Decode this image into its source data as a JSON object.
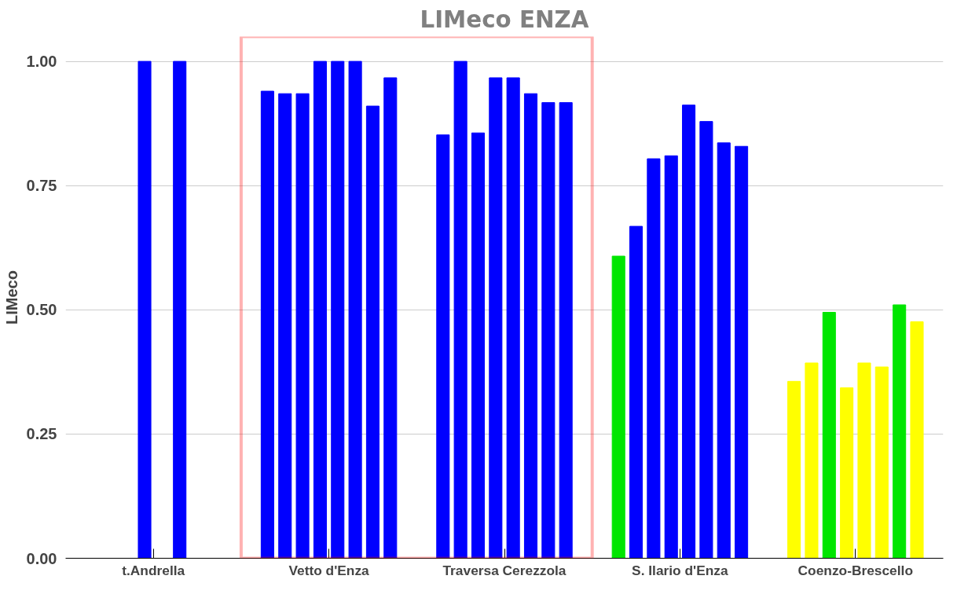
{
  "chart_data": {
    "type": "bar",
    "title": "LIMeco ENZA",
    "ylabel": "LIMeco",
    "categories": [
      "t.Andrella",
      "Vetto d'Enza",
      "Traversa Cerezzola",
      "S. Ilario d'Enza",
      "Coenzo-Brescello"
    ],
    "series": [
      {
        "values": [
          null,
          0.94,
          0.852,
          0.608,
          0.356
        ],
        "colors": [
          "#0000ff",
          "#0000ff",
          "#0000ff",
          "#00e600",
          "#ffff00"
        ]
      },
      {
        "values": [
          null,
          0.935,
          1.0,
          0.668,
          0.393
        ],
        "colors": [
          "#0000ff",
          "#0000ff",
          "#0000ff",
          "#0000ff",
          "#ffff00"
        ]
      },
      {
        "values": [
          null,
          0.935,
          0.856,
          0.804,
          0.495
        ],
        "colors": [
          "#0000ff",
          "#0000ff",
          "#0000ff",
          "#0000ff",
          "#00e600"
        ]
      },
      {
        "values": [
          1.0,
          1.0,
          0.967,
          0.81,
          0.343
        ],
        "colors": [
          "#0000ff",
          "#0000ff",
          "#0000ff",
          "#0000ff",
          "#ffff00"
        ]
      },
      {
        "values": [
          null,
          1.0,
          0.967,
          0.912,
          0.393
        ],
        "colors": [
          "#0000ff",
          "#0000ff",
          "#0000ff",
          "#0000ff",
          "#ffff00"
        ]
      },
      {
        "values": [
          1.0,
          1.0,
          0.935,
          0.879,
          0.385
        ],
        "colors": [
          "#0000ff",
          "#0000ff",
          "#0000ff",
          "#0000ff",
          "#ffff00"
        ]
      },
      {
        "values": [
          null,
          0.91,
          0.917,
          0.836,
          0.51
        ],
        "colors": [
          "#0000ff",
          "#0000ff",
          "#0000ff",
          "#0000ff",
          "#00e600"
        ]
      },
      {
        "values": [
          null,
          0.967,
          0.917,
          0.829,
          0.476
        ],
        "colors": [
          "#0000ff",
          "#0000ff",
          "#0000ff",
          "#0000ff",
          "#ffff00"
        ]
      }
    ],
    "ylim": [
      0,
      1.05
    ],
    "yticks": [
      {
        "value": 0,
        "label": "0.00"
      },
      {
        "value": 0.25,
        "label": "0.25"
      },
      {
        "value": 0.5,
        "label": "0.50"
      },
      {
        "value": 0.75,
        "label": "0.75"
      },
      {
        "value": 1,
        "label": "1.00"
      }
    ],
    "grid": "y"
  }
}
